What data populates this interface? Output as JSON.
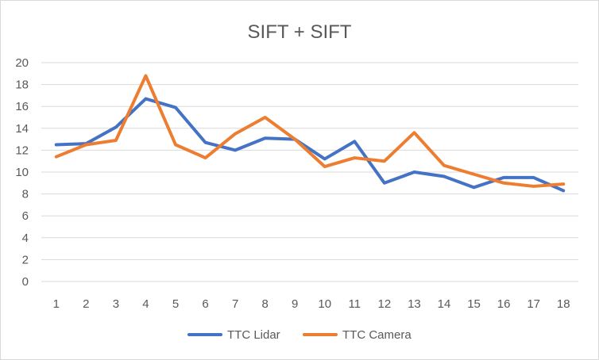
{
  "chart_data": {
    "type": "line",
    "title": "SIFT + SIFT",
    "xlabel": "",
    "ylabel": "",
    "x": [
      1,
      2,
      3,
      4,
      5,
      6,
      7,
      8,
      9,
      10,
      11,
      12,
      13,
      14,
      15,
      16,
      17,
      18
    ],
    "ylim": [
      0,
      20
    ],
    "yticks": [
      0,
      2,
      4,
      6,
      8,
      10,
      12,
      14,
      16,
      18,
      20
    ],
    "grid": "horizontal",
    "legend": "bottom",
    "series": [
      {
        "name": "TTC Lidar",
        "color": "#4472c4",
        "values": [
          12.5,
          12.6,
          14.1,
          16.7,
          15.9,
          12.7,
          12.0,
          13.1,
          13.0,
          11.2,
          12.8,
          9.0,
          10.0,
          9.6,
          8.6,
          9.5,
          9.5,
          8.3
        ]
      },
      {
        "name": "TTC Camera",
        "color": "#ed7d31",
        "values": [
          11.4,
          12.5,
          12.9,
          18.8,
          12.5,
          11.3,
          13.5,
          15.0,
          13.0,
          10.5,
          11.3,
          11.0,
          13.6,
          10.6,
          9.8,
          9.0,
          8.7,
          8.9
        ]
      }
    ]
  }
}
